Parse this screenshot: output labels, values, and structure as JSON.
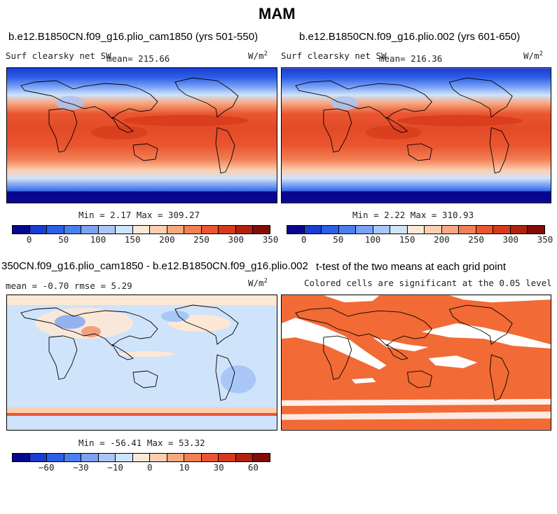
{
  "page_title": "MAM",
  "colors": {
    "land_outline": "#000000",
    "significant": "#f26a35"
  },
  "chart_data": [
    {
      "type": "heatmap",
      "title": "b.e12.B1850CN.f09_g16.plio_cam1850 (yrs 501-550)",
      "left_label": "Surf clearsky net SW",
      "stat_text": "mean= 215.66",
      "units": "W/m",
      "units_sup": "2",
      "min_max_text": "Min =   2.17 Max = 309.27",
      "colorbar": {
        "colors": [
          "#07078f",
          "#1a3ccf",
          "#2d5fe6",
          "#4a7ff0",
          "#7aa2f5",
          "#a9c6f8",
          "#cfe3fa",
          "#fde8d6",
          "#fbcfb0",
          "#f7a880",
          "#f28056",
          "#ea5630",
          "#d63a1a",
          "#b0220e",
          "#830b08"
        ],
        "ticks": [
          {
            "label": "0",
            "index": 1
          },
          {
            "label": "50",
            "index": 3
          },
          {
            "label": "100",
            "index": 5
          },
          {
            "label": "150",
            "index": 7
          },
          {
            "label": "200",
            "index": 9
          },
          {
            "label": "250",
            "index": 11
          },
          {
            "label": "300",
            "index": 13
          },
          {
            "label": "350",
            "index": 15
          }
        ]
      }
    },
    {
      "type": "heatmap",
      "title": "b.e12.B1850CN.f09_g16.plio.002 (yrs 601-650)",
      "left_label": "Surf clearsky net SW",
      "stat_text": "mean= 216.36",
      "units": "W/m",
      "units_sup": "2",
      "min_max_text": "Min =   2.22 Max = 310.93",
      "colorbar": {
        "colors": [
          "#07078f",
          "#1a3ccf",
          "#2d5fe6",
          "#4a7ff0",
          "#7aa2f5",
          "#a9c6f8",
          "#cfe3fa",
          "#fde8d6",
          "#fbcfb0",
          "#f7a880",
          "#f28056",
          "#ea5630",
          "#d63a1a",
          "#b0220e",
          "#830b08"
        ],
        "ticks": [
          {
            "label": "0",
            "index": 1
          },
          {
            "label": "50",
            "index": 3
          },
          {
            "label": "100",
            "index": 5
          },
          {
            "label": "150",
            "index": 7
          },
          {
            "label": "200",
            "index": 9
          },
          {
            "label": "250",
            "index": 11
          },
          {
            "label": "300",
            "index": 13
          },
          {
            "label": "350",
            "index": 15
          }
        ]
      }
    },
    {
      "type": "heatmap",
      "title": "350CN.f09_g16.plio_cam1850 - b.e12.B1850CN.f09_g16.plio.002",
      "left_label": "mean =  -0.70     rmse =    5.29",
      "units": "W/m",
      "units_sup": "2",
      "min_max_text": "Min = -56.41 Max =  53.32",
      "colorbar": {
        "colors": [
          "#07078f",
          "#1a3ccf",
          "#2d5fe6",
          "#4a7ff0",
          "#7aa2f5",
          "#a9c6f8",
          "#cfe3fa",
          "#fde8d6",
          "#fbcfb0",
          "#f7a880",
          "#f28056",
          "#ea5630",
          "#d63a1a",
          "#b0220e",
          "#830b08"
        ],
        "ticks": [
          {
            "label": "−60",
            "index": 2
          },
          {
            "label": "−30",
            "index": 4
          },
          {
            "label": "−10",
            "index": 6
          },
          {
            "label": "0",
            "index": 8
          },
          {
            "label": "10",
            "index": 10
          },
          {
            "label": "30",
            "index": 12
          },
          {
            "label": "60",
            "index": 14
          }
        ]
      }
    },
    {
      "type": "heatmap",
      "title": "t-test of the two means at each grid point",
      "subtitle": "Colored cells are significant at the 0.05 level"
    }
  ]
}
